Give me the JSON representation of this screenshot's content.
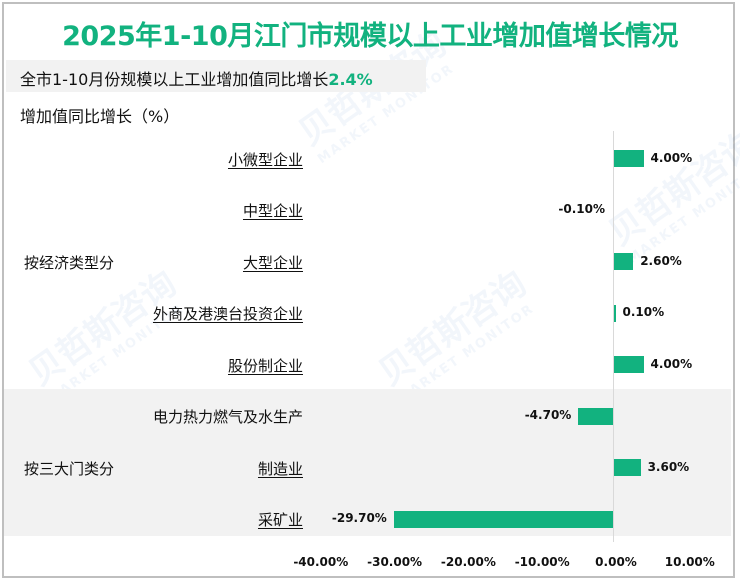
{
  "title": "2025年1-10月江门市规模以上工业增加值增长情况",
  "subtitle": {
    "text": "全市1-10月份规模以上工业增加值同比增长",
    "highlight": "2.4%"
  },
  "colors": {
    "accent": "#12b27f",
    "bar": "#12b27f",
    "band": "#f2f2f2",
    "axis": "#d9d9d9"
  },
  "watermark": {
    "cn": "贝哲斯咨询",
    "en": "MARKET MONITOR"
  },
  "chart_data": {
    "type": "bar",
    "orientation": "horizontal",
    "title": "2025年1-10月江门市规模以上工业增加值增长情况",
    "ylabel": "增加值同比增长（%）",
    "xlabel": "",
    "xlim": [
      -40,
      10
    ],
    "x_ticks": [
      "-40.00%",
      "-30.00%",
      "-20.00%",
      "-10.00%",
      "0.00%",
      "10.00%"
    ],
    "grid": false,
    "legend": null,
    "groups": [
      {
        "name": "按经济类型分",
        "categories": [
          "小微型企业",
          "中型企业",
          "大型企业",
          "外商及港澳台投资企业",
          "股份制企业"
        ],
        "values": [
          4.0,
          -0.1,
          2.6,
          0.1,
          4.0
        ],
        "labels": [
          "4.00%",
          "-0.10%",
          "2.60%",
          "0.10%",
          "4.00%"
        ]
      },
      {
        "name": "按三大门类分",
        "categories": [
          "电力热力燃气及水生产",
          "制造业",
          "采矿业"
        ],
        "values": [
          -4.7,
          3.6,
          -29.7
        ],
        "labels": [
          "-4.70%",
          "3.60%",
          "-29.70%"
        ]
      }
    ],
    "categories": [
      "小微型企业",
      "中型企业",
      "大型企业",
      "外商及港澳台投资企业",
      "股份制企业",
      "电力热力燃气及水生产",
      "制造业",
      "采矿业"
    ],
    "values": [
      4.0,
      -0.1,
      2.6,
      0.1,
      4.0,
      -4.7,
      3.6,
      -29.7
    ]
  }
}
